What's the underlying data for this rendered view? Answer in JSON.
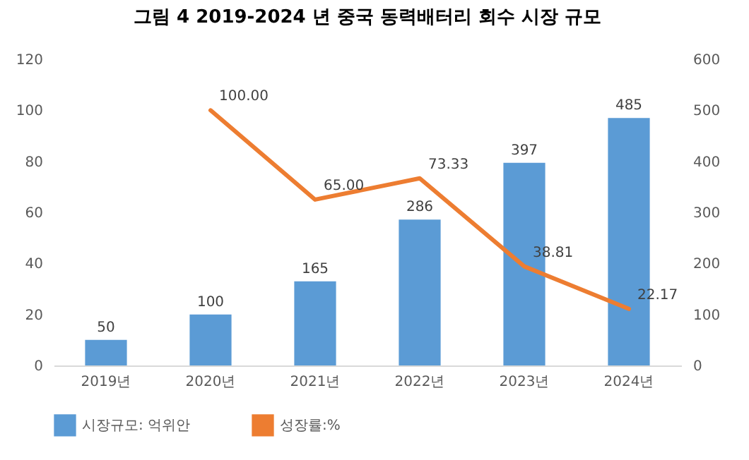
{
  "chart_data": {
    "type": "bar",
    "title": "그림 4 2019-2024 년 중국 동력배터리 회수 시장 규모",
    "categories": [
      "2019년",
      "2020년",
      "2021년",
      "2022년",
      "2023년",
      "2024년"
    ],
    "series": [
      {
        "name": "시장규모: 억위안",
        "axis": "y2",
        "color": "#5b9bd5",
        "values": [
          50,
          100,
          165,
          286,
          397,
          485
        ],
        "value_labels": [
          "50",
          "100",
          "165",
          "286",
          "397",
          "485"
        ]
      },
      {
        "name": "성장률:%",
        "type": "line",
        "color": "#ed7d31",
        "values": [
          null,
          100,
          65,
          73.33,
          38.81,
          22.17
        ],
        "value_labels": [
          null,
          "100.00",
          "65.00",
          "73.33",
          "38.81",
          "22.17"
        ]
      }
    ],
    "ylim": [
      0,
      120
    ],
    "yticks": [
      0,
      20,
      40,
      60,
      80,
      100,
      120
    ],
    "y2lim": [
      0,
      600
    ],
    "y2ticks": [
      0,
      100,
      200,
      300,
      400,
      500,
      600
    ],
    "legend": "bottom",
    "grid": false,
    "marker": "none",
    "line_style": "solid"
  }
}
